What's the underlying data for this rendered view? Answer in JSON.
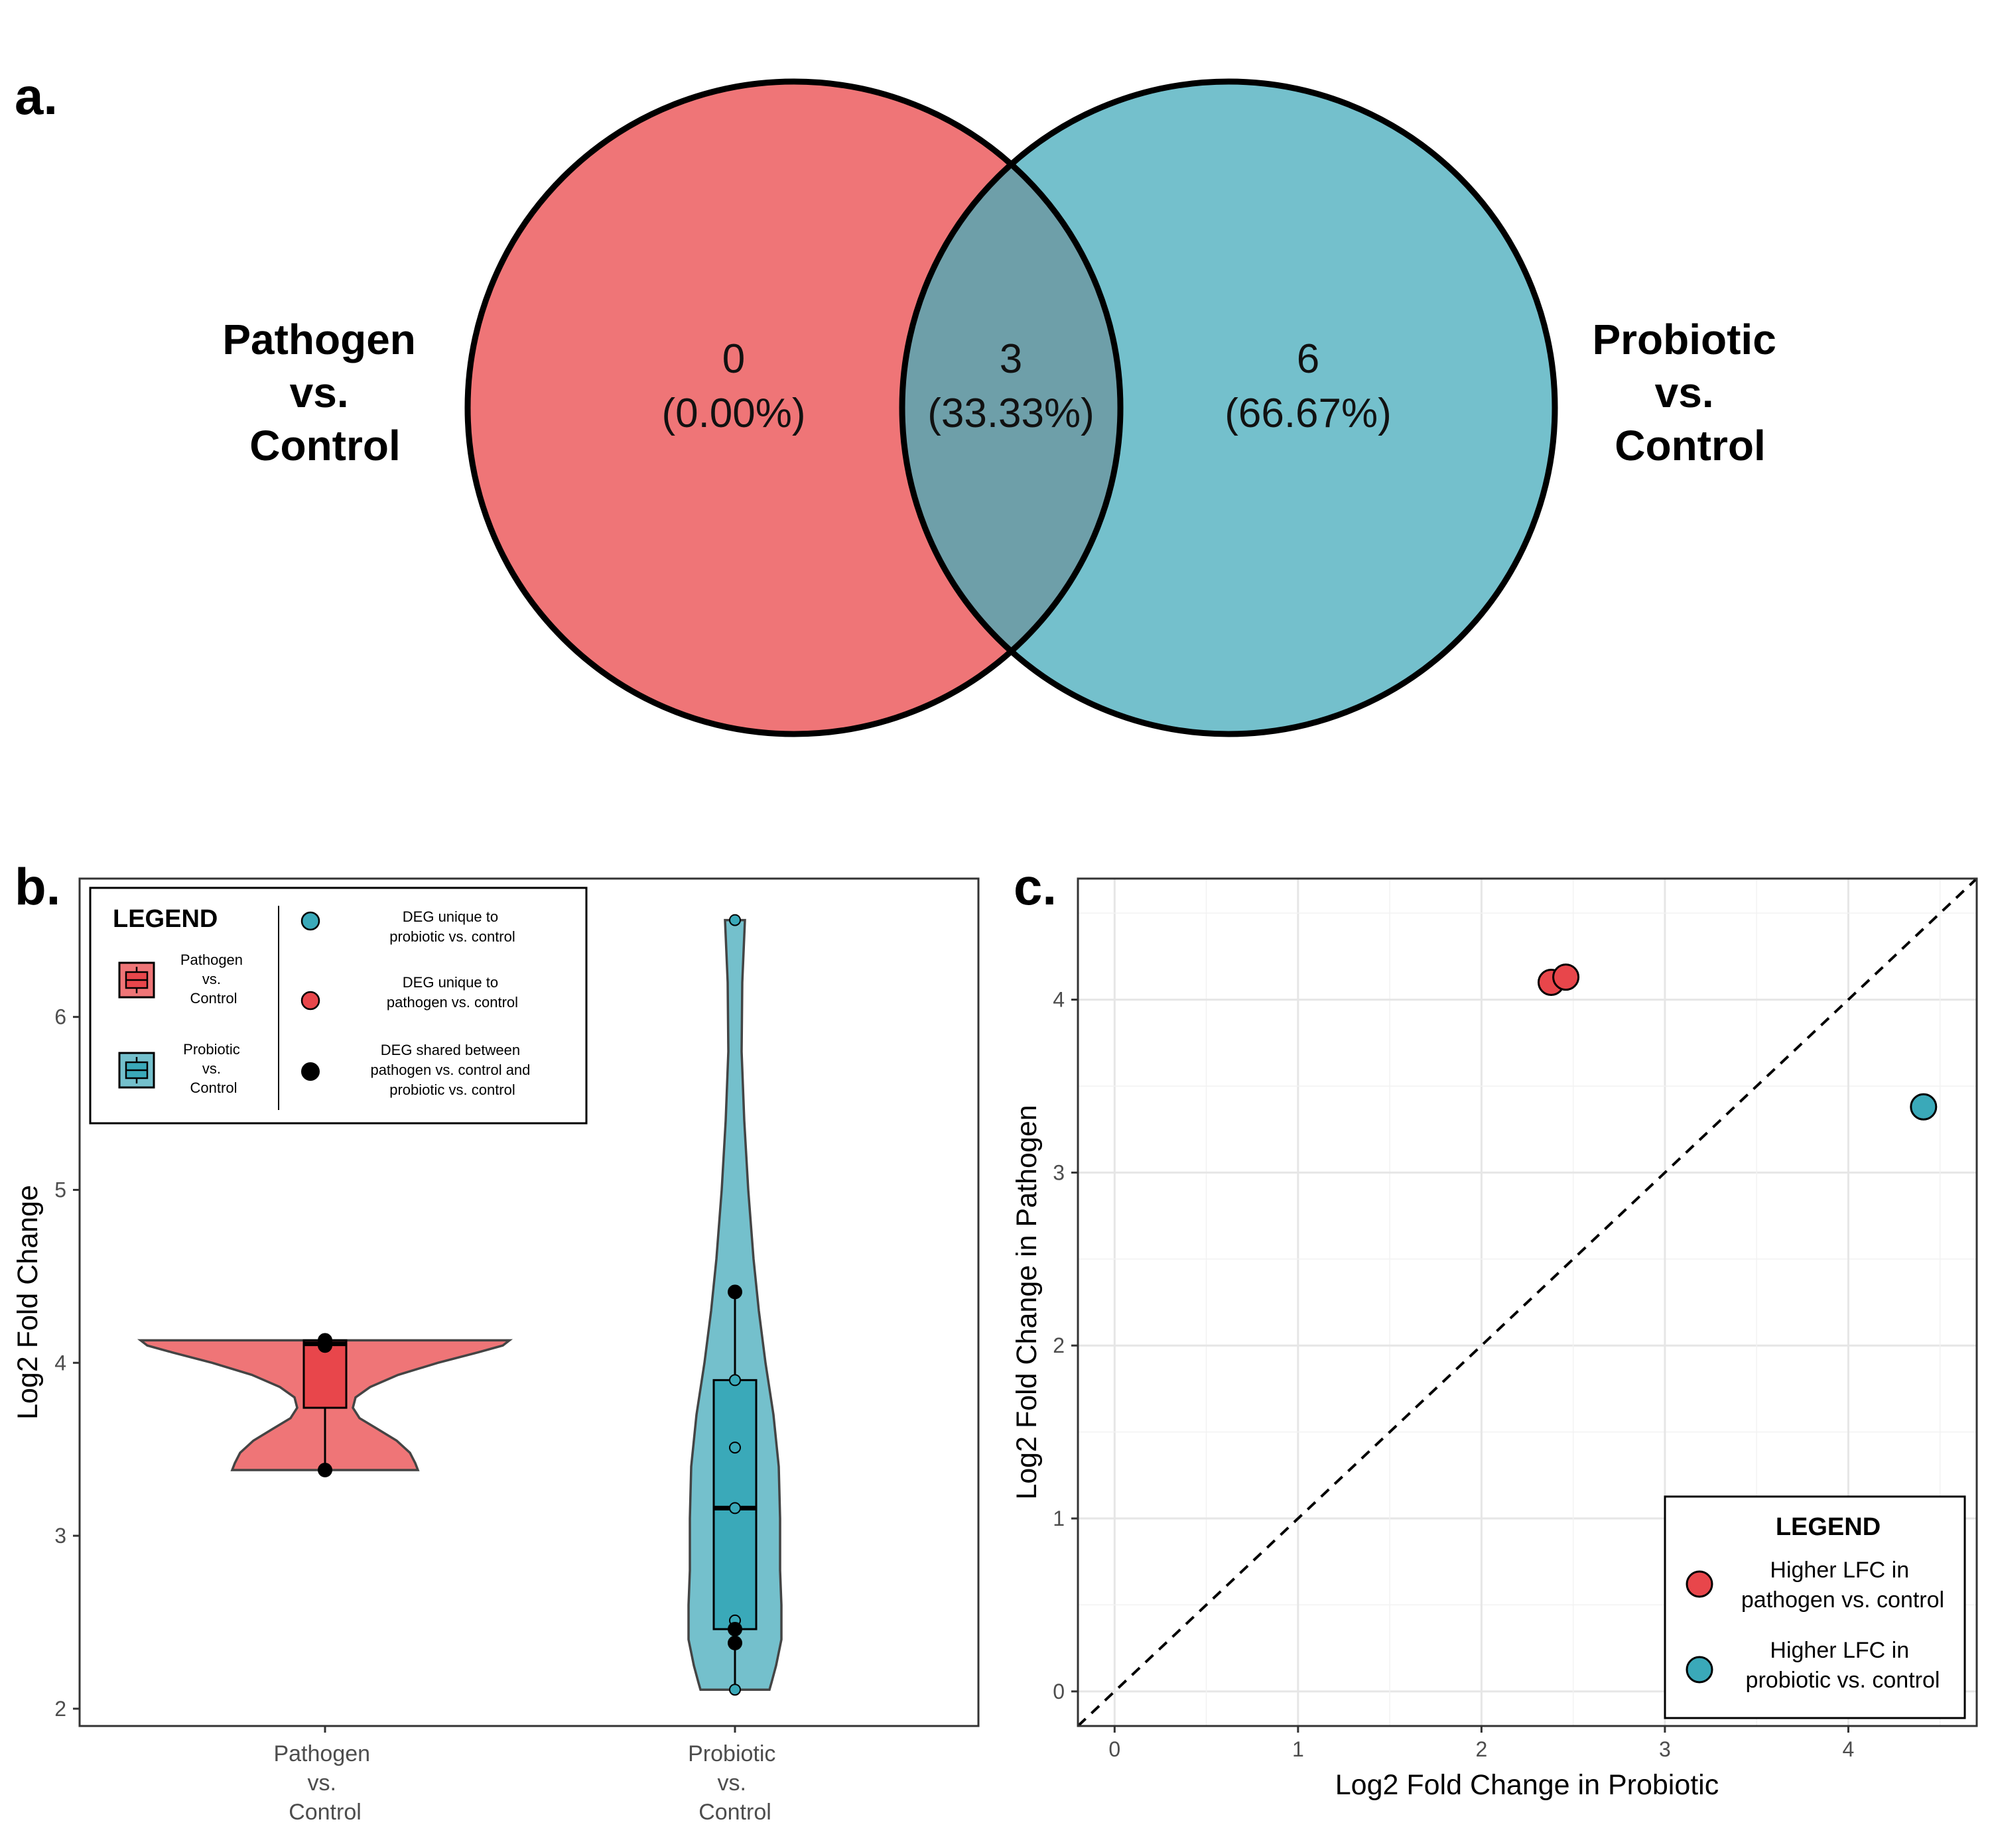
{
  "panels": {
    "a": "a.",
    "b": "b.",
    "c": "c."
  },
  "colors": {
    "pathogen": "#ef7577",
    "probiotic": "#74c0cc",
    "overlap": "#6e9fa9",
    "pathogen_dark": "#e8464b",
    "probiotic_dark": "#3aa9b9"
  },
  "chart_data": [
    {
      "type": "venn",
      "sets": [
        {
          "name_lines": [
            "Pathogen",
            "vs.",
            "Control"
          ],
          "unique_count": "0",
          "unique_pct": "(0.00%)"
        },
        {
          "name_lines": [
            "Probiotic",
            "vs.",
            "Control"
          ],
          "unique_count": "6",
          "unique_pct": "(66.67%)"
        }
      ],
      "overlap": {
        "count": "3",
        "pct": "(33.33%)"
      }
    },
    {
      "type": "violin",
      "ylabel": "Log2 Fold Change",
      "ylim": [
        1.9,
        6.8
      ],
      "yticks": [
        2,
        3,
        4,
        5,
        6
      ],
      "groups": [
        {
          "label_lines": [
            "Pathogen",
            "vs.",
            "Control"
          ],
          "box": {
            "min": 3.38,
            "q1": 3.74,
            "median": 4.11,
            "q3": 4.13,
            "max": 4.13
          },
          "points": [
            {
              "y": 4.13,
              "kind": "shared"
            },
            {
              "y": 4.1,
              "kind": "shared"
            },
            {
              "y": 3.38,
              "kind": "shared"
            }
          ]
        },
        {
          "label_lines": [
            "Probiotic",
            "vs.",
            "Control"
          ],
          "box": {
            "min": 2.11,
            "q1": 2.46,
            "median": 3.16,
            "q3": 3.9,
            "max": 4.41
          },
          "points": [
            {
              "y": 6.56,
              "kind": "probiotic_unique"
            },
            {
              "y": 4.41,
              "kind": "shared"
            },
            {
              "y": 3.9,
              "kind": "probiotic_unique"
            },
            {
              "y": 3.51,
              "kind": "probiotic_unique"
            },
            {
              "y": 3.16,
              "kind": "probiotic_unique"
            },
            {
              "y": 2.51,
              "kind": "probiotic_unique"
            },
            {
              "y": 2.46,
              "kind": "shared"
            },
            {
              "y": 2.38,
              "kind": "shared"
            },
            {
              "y": 2.11,
              "kind": "probiotic_unique"
            }
          ]
        }
      ],
      "legend": {
        "title": "LEGEND",
        "groups": [
          [
            "Pathogen",
            "vs.",
            "Control"
          ],
          [
            "Probiotic",
            "vs.",
            "Control"
          ]
        ],
        "points": [
          [
            "DEG unique to",
            "probiotic vs. control"
          ],
          [
            "DEG unique to",
            "pathogen vs. control"
          ],
          [
            "DEG shared between",
            "pathogen vs. control and",
            "probiotic vs. control"
          ]
        ]
      }
    },
    {
      "type": "scatter",
      "xlabel": "Log2 Fold Change in Probiotic",
      "ylabel": "Log2 Fold Change in Pathogen",
      "xlim": [
        -0.2,
        4.7
      ],
      "ylim": [
        -0.2,
        4.7
      ],
      "xticks": [
        0,
        1,
        2,
        3,
        4
      ],
      "yticks": [
        0,
        1,
        2,
        3,
        4
      ],
      "diagonal": "y = x (dashed)",
      "points": [
        {
          "x": 2.38,
          "y": 4.1,
          "group": "pathogen"
        },
        {
          "x": 2.46,
          "y": 4.13,
          "group": "pathogen"
        },
        {
          "x": 4.41,
          "y": 3.38,
          "group": "probiotic"
        }
      ],
      "legend": {
        "title": "LEGEND",
        "items": [
          {
            "lines": [
              "Higher LFC in",
              "pathogen vs. control"
            ],
            "group": "pathogen"
          },
          {
            "lines": [
              "Higher LFC in",
              "probiotic vs. control"
            ],
            "group": "probiotic"
          }
        ]
      }
    }
  ]
}
